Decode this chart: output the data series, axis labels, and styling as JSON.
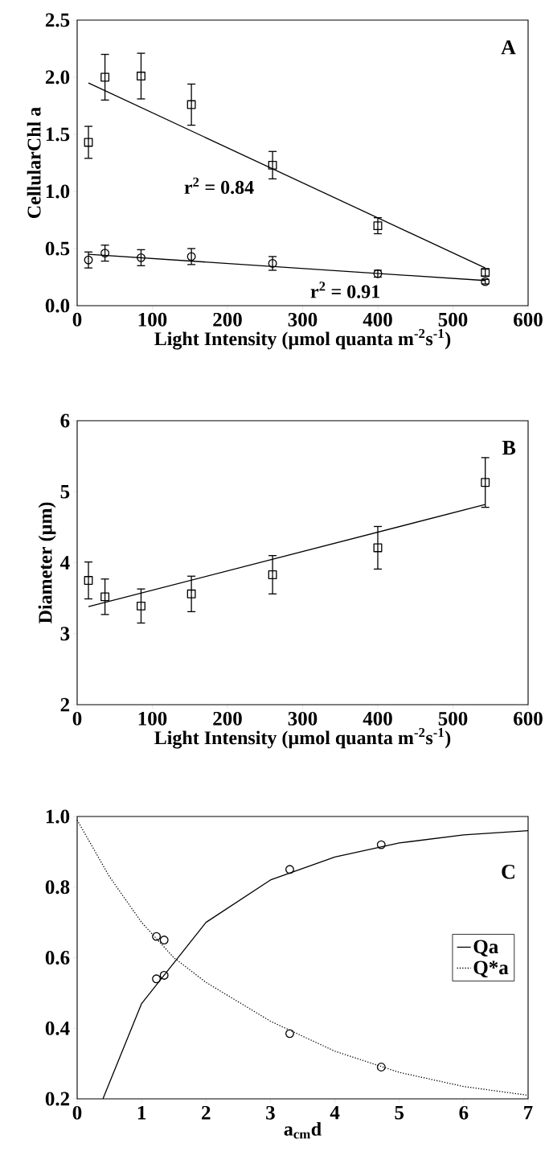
{
  "chart_data": [
    {
      "type": "scatter",
      "xlabel": "Light Intensity (µmol quanta m$^{-2}$s$^{-1}$)",
      "ylabel": "CellularChl a",
      "xlim": [
        0,
        600
      ],
      "ylim": [
        0,
        2.5
      ],
      "xticks": [
        0,
        100,
        200,
        300,
        400,
        500,
        600
      ],
      "yticks": [
        {
          "value": 0,
          "label": "0.0"
        },
        {
          "value": 0.5,
          "label": "0.5"
        },
        {
          "value": 1,
          "label": "1.0"
        },
        {
          "value": 1.5,
          "label": "1.5"
        },
        {
          "value": 2,
          "label": "2.0"
        },
        {
          "value": 2.5,
          "label": "2.5"
        }
      ],
      "annotations": [
        "A",
        "r$^{2}$ = 0.84",
        "r$^{2}$ = 0.91"
      ],
      "series": [
        {
          "marker": "square",
          "color": "#000000",
          "x": [
            15,
            37,
            85,
            152,
            260,
            400,
            543
          ],
          "values": [
            1.43,
            2.0,
            2.01,
            1.76,
            1.23,
            0.7,
            0.29
          ],
          "errors": [
            0.14,
            0.2,
            0.2,
            0.18,
            0.12,
            0.07,
            0.03
          ]
        },
        {
          "marker": "circle",
          "color": "#000000",
          "x": [
            15,
            37,
            85,
            152,
            260,
            400,
            543
          ],
          "values": [
            0.4,
            0.46,
            0.42,
            0.43,
            0.37,
            0.28,
            0.21
          ],
          "errors": [
            0.07,
            0.07,
            0.07,
            0.07,
            0.06,
            0.03,
            0.02
          ]
        },
        {
          "type": "line",
          "marker": "none",
          "line_style": "solid",
          "color": "#000000",
          "x": [
            15,
            543
          ],
          "values": [
            1.95,
            0.33
          ]
        },
        {
          "type": "line",
          "marker": "none",
          "line_style": "solid",
          "color": "#000000",
          "x": [
            15,
            543
          ],
          "values": [
            0.45,
            0.22
          ]
        }
      ]
    },
    {
      "type": "scatter",
      "xlabel": "Light Intensity (µmol quanta m$^{-2}$s$^{-1}$)",
      "ylabel": "Diameter (µm)",
      "xlim": [
        0,
        600
      ],
      "ylim": [
        2,
        6
      ],
      "xticks": [
        0,
        100,
        200,
        300,
        400,
        500,
        600
      ],
      "yticks": [
        2,
        3,
        4,
        5,
        6
      ],
      "annotations": [
        "B"
      ],
      "series": [
        {
          "marker": "square",
          "color": "#000000",
          "x": [
            15,
            37,
            85,
            152,
            260,
            400,
            543
          ],
          "values": [
            3.75,
            3.52,
            3.39,
            3.56,
            3.83,
            4.21,
            5.13
          ],
          "errors": [
            0.26,
            0.25,
            0.24,
            0.25,
            0.27,
            0.3,
            0.35
          ]
        },
        {
          "type": "line",
          "marker": "none",
          "line_style": "solid",
          "color": "#000000",
          "x": [
            15,
            543
          ],
          "values": [
            3.38,
            4.82
          ]
        }
      ]
    },
    {
      "type": "line",
      "xlabel": "a$_{cm}$d",
      "xlim": [
        0,
        7
      ],
      "ylim": [
        0.2,
        1.0
      ],
      "xticks": [
        0,
        1,
        2,
        3,
        4,
        5,
        6,
        7
      ],
      "yticks": [
        0.2,
        0.4,
        0.6,
        0.8,
        {
          "value": 1.0,
          "label": "1.0"
        }
      ],
      "legend": "right",
      "annotations": [
        "C"
      ],
      "series": [
        {
          "name": "Qa",
          "marker": "none",
          "line_style": "solid",
          "color": "#000000",
          "x": [
            0.4,
            1,
            2,
            3,
            4,
            5,
            6,
            7
          ],
          "values": [
            0.2,
            0.47,
            0.7,
            0.82,
            0.885,
            0.925,
            0.948,
            0.96
          ]
        },
        {
          "name": "Q*a",
          "marker": "none",
          "line_style": "dotted",
          "color": "#000000",
          "x": [
            0,
            0.5,
            1,
            1.5,
            2,
            3,
            4,
            5,
            6,
            7
          ],
          "values": [
            0.99,
            0.83,
            0.7,
            0.6,
            0.53,
            0.42,
            0.335,
            0.275,
            0.235,
            0.21
          ]
        },
        {
          "type": "scatter",
          "marker": "circle",
          "color": "#000000",
          "x": [
            1.23,
            1.35,
            1.23,
            1.35
          ],
          "values": [
            0.66,
            0.65,
            0.54,
            0.55
          ]
        },
        {
          "type": "scatter",
          "marker": "circle",
          "color": "#000000",
          "x": [
            3.3,
            4.72,
            3.3,
            4.72
          ],
          "values": [
            0.85,
            0.92,
            0.385,
            0.29
          ]
        }
      ]
    }
  ]
}
